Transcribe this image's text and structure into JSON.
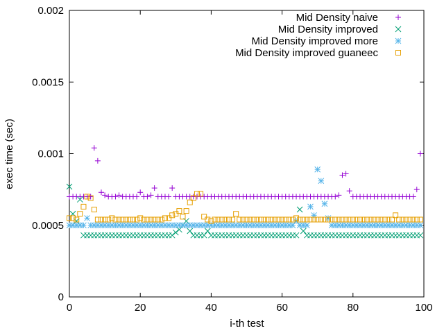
{
  "chart_data": {
    "type": "scatter",
    "title": "",
    "xlabel": "i-th test",
    "ylabel": "exec time (sec)",
    "xlim": [
      0,
      100
    ],
    "ylim": [
      0,
      0.002
    ],
    "x_ticks": [
      0,
      20,
      40,
      60,
      80,
      100
    ],
    "y_ticks": [
      0,
      0.0005,
      0.001,
      0.0015,
      0.002
    ],
    "x_tick_labels": [
      "0",
      "20",
      "40",
      "60",
      "80",
      "100"
    ],
    "y_tick_labels": [
      "0",
      "0.0005",
      "0.001",
      "0.0015",
      "0.002"
    ],
    "grid": false,
    "legend_position": "top-right",
    "series": [
      {
        "name": "Mid Density naive",
        "marker": "plus",
        "color": "#9400d3",
        "x": [
          0,
          1,
          2,
          3,
          4,
          5,
          6,
          7,
          8,
          9,
          10,
          11,
          12,
          13,
          14,
          15,
          16,
          17,
          18,
          19,
          20,
          21,
          22,
          23,
          24,
          25,
          26,
          27,
          28,
          29,
          30,
          31,
          32,
          33,
          34,
          35,
          36,
          37,
          38,
          39,
          40,
          41,
          42,
          43,
          44,
          45,
          46,
          47,
          48,
          49,
          50,
          51,
          52,
          53,
          54,
          55,
          56,
          57,
          58,
          59,
          60,
          61,
          62,
          63,
          64,
          65,
          66,
          67,
          68,
          69,
          70,
          71,
          72,
          73,
          74,
          75,
          76,
          77,
          78,
          79,
          80,
          81,
          82,
          83,
          84,
          85,
          86,
          87,
          88,
          89,
          90,
          91,
          92,
          93,
          94,
          95,
          96,
          97,
          98,
          99
        ],
        "y": [
          0.0007,
          0.0007,
          0.0007,
          0.0007,
          0.0007,
          0.0007,
          0.0007,
          0.00104,
          0.00095,
          0.00073,
          0.00071,
          0.0007,
          0.0007,
          0.0007,
          0.00071,
          0.0007,
          0.0007,
          0.0007,
          0.0007,
          0.0007,
          0.00073,
          0.0007,
          0.0007,
          0.00071,
          0.00076,
          0.0007,
          0.0007,
          0.0007,
          0.0007,
          0.00076,
          0.0007,
          0.0007,
          0.0007,
          0.0007,
          0.0007,
          0.0007,
          0.0007,
          0.0007,
          0.0007,
          0.0007,
          0.0007,
          0.0007,
          0.0007,
          0.0007,
          0.0007,
          0.0007,
          0.0007,
          0.0007,
          0.0007,
          0.0007,
          0.0007,
          0.0007,
          0.0007,
          0.0007,
          0.0007,
          0.0007,
          0.0007,
          0.0007,
          0.0007,
          0.0007,
          0.0007,
          0.0007,
          0.0007,
          0.0007,
          0.0007,
          0.0007,
          0.0007,
          0.0007,
          0.0007,
          0.0007,
          0.0007,
          0.0007,
          0.0007,
          0.0007,
          0.0007,
          0.0007,
          0.00071,
          0.00085,
          0.00086,
          0.00074,
          0.0007,
          0.0007,
          0.0007,
          0.0007,
          0.0007,
          0.0007,
          0.0007,
          0.0007,
          0.0007,
          0.0007,
          0.0007,
          0.0007,
          0.0007,
          0.0007,
          0.0007,
          0.0007,
          0.0007,
          0.0007,
          0.00075,
          0.001
        ]
      },
      {
        "name": "Mid Density improved",
        "marker": "cross",
        "color": "#009e73",
        "x": [
          0,
          1,
          2,
          3,
          4,
          5,
          6,
          7,
          8,
          9,
          10,
          11,
          12,
          13,
          14,
          15,
          16,
          17,
          18,
          19,
          20,
          21,
          22,
          23,
          24,
          25,
          26,
          27,
          28,
          29,
          30,
          31,
          32,
          33,
          34,
          35,
          36,
          37,
          38,
          39,
          40,
          41,
          42,
          43,
          44,
          45,
          46,
          47,
          48,
          49,
          50,
          51,
          52,
          53,
          54,
          55,
          56,
          57,
          58,
          59,
          60,
          61,
          62,
          63,
          64,
          65,
          66,
          67,
          68,
          69,
          70,
          71,
          72,
          73,
          74,
          75,
          76,
          77,
          78,
          79,
          80,
          81,
          82,
          83,
          84,
          85,
          86,
          87,
          88,
          89,
          90,
          91,
          92,
          93,
          94,
          95,
          96,
          97,
          98,
          99
        ],
        "y": [
          0.00077,
          0.00058,
          0.00053,
          0.00068,
          0.00043,
          0.00043,
          0.00043,
          0.00043,
          0.00043,
          0.00043,
          0.00043,
          0.00043,
          0.00043,
          0.00043,
          0.00043,
          0.00043,
          0.00043,
          0.00043,
          0.00043,
          0.00043,
          0.00043,
          0.00043,
          0.00043,
          0.00043,
          0.00043,
          0.00043,
          0.00043,
          0.00043,
          0.00043,
          0.00043,
          0.00045,
          0.00047,
          0.0005,
          0.00053,
          0.00046,
          0.00043,
          0.00043,
          0.00043,
          0.00043,
          0.00046,
          0.00043,
          0.00043,
          0.00043,
          0.00043,
          0.00043,
          0.00043,
          0.00043,
          0.00043,
          0.00043,
          0.00043,
          0.00043,
          0.00043,
          0.00043,
          0.00043,
          0.00043,
          0.00043,
          0.00043,
          0.00043,
          0.00043,
          0.00043,
          0.00043,
          0.00043,
          0.00043,
          0.00043,
          0.00043,
          0.00061,
          0.00046,
          0.00043,
          0.00043,
          0.00043,
          0.00043,
          0.00043,
          0.00043,
          0.00043,
          0.00043,
          0.00043,
          0.00043,
          0.00043,
          0.00043,
          0.00043,
          0.00043,
          0.00043,
          0.00043,
          0.00043,
          0.00043,
          0.00043,
          0.00043,
          0.00043,
          0.00043,
          0.00043,
          0.00043,
          0.00043,
          0.00043,
          0.00043,
          0.00043,
          0.00043,
          0.00043,
          0.00043,
          0.00043,
          0.00043
        ]
      },
      {
        "name": "Mid Density improved more",
        "marker": "star",
        "color": "#56b4e9",
        "x": [
          0,
          1,
          2,
          3,
          4,
          5,
          6,
          7,
          8,
          9,
          10,
          11,
          12,
          13,
          14,
          15,
          16,
          17,
          18,
          19,
          20,
          21,
          22,
          23,
          24,
          25,
          26,
          27,
          28,
          29,
          30,
          31,
          32,
          33,
          34,
          35,
          36,
          37,
          38,
          39,
          40,
          41,
          42,
          43,
          44,
          45,
          46,
          47,
          48,
          49,
          50,
          51,
          52,
          53,
          54,
          55,
          56,
          57,
          58,
          59,
          60,
          61,
          62,
          63,
          64,
          65,
          66,
          67,
          68,
          69,
          70,
          71,
          72,
          73,
          74,
          75,
          76,
          77,
          78,
          79,
          80,
          81,
          82,
          83,
          84,
          85,
          86,
          87,
          88,
          89,
          90,
          91,
          92,
          93,
          94,
          95,
          96,
          97,
          98,
          99
        ],
        "y": [
          0.0005,
          0.0005,
          0.0005,
          0.0005,
          0.0005,
          0.00055,
          0.0005,
          0.0005,
          0.0005,
          0.0005,
          0.0005,
          0.0005,
          0.0005,
          0.0005,
          0.0005,
          0.0005,
          0.0005,
          0.0005,
          0.0005,
          0.0005,
          0.0005,
          0.0005,
          0.0005,
          0.0005,
          0.0005,
          0.0005,
          0.0005,
          0.0005,
          0.0005,
          0.0005,
          0.0005,
          0.0005,
          0.0005,
          0.0005,
          0.0005,
          0.0005,
          0.0005,
          0.0005,
          0.0005,
          0.0005,
          0.0005,
          0.0005,
          0.0005,
          0.0005,
          0.0005,
          0.0005,
          0.0005,
          0.0005,
          0.0005,
          0.0005,
          0.0005,
          0.0005,
          0.0005,
          0.0005,
          0.0005,
          0.0005,
          0.0005,
          0.0005,
          0.0005,
          0.0005,
          0.0005,
          0.0005,
          0.0005,
          0.0005,
          0.00053,
          0.0005,
          0.0005,
          0.0005,
          0.00063,
          0.00057,
          0.00089,
          0.00081,
          0.00065,
          0.00055,
          0.0005,
          0.0005,
          0.0005,
          0.0005,
          0.0005,
          0.0005,
          0.0005,
          0.0005,
          0.0005,
          0.0005,
          0.0005,
          0.0005,
          0.0005,
          0.0005,
          0.0005,
          0.0005,
          0.0005,
          0.0005,
          0.0005,
          0.0005,
          0.0005,
          0.0005,
          0.0005,
          0.0005,
          0.0005,
          0.0005
        ]
      },
      {
        "name": "Mid Density improved guaneec",
        "marker": "square",
        "color": "#e69f00",
        "x": [
          0,
          1,
          2,
          3,
          4,
          5,
          6,
          7,
          8,
          9,
          10,
          11,
          12,
          13,
          14,
          15,
          16,
          17,
          18,
          19,
          20,
          21,
          22,
          23,
          24,
          25,
          26,
          27,
          28,
          29,
          30,
          31,
          32,
          33,
          34,
          35,
          36,
          37,
          38,
          39,
          40,
          41,
          42,
          43,
          44,
          45,
          46,
          47,
          48,
          49,
          50,
          51,
          52,
          53,
          54,
          55,
          56,
          57,
          58,
          59,
          60,
          61,
          62,
          63,
          64,
          65,
          66,
          67,
          68,
          69,
          70,
          71,
          72,
          73,
          74,
          75,
          76,
          77,
          78,
          79,
          80,
          81,
          82,
          83,
          84,
          85,
          86,
          87,
          88,
          89,
          90,
          91,
          92,
          93,
          94,
          95,
          96,
          97,
          98,
          99
        ],
        "y": [
          0.00055,
          0.00055,
          0.00054,
          0.00058,
          0.00063,
          0.0007,
          0.00069,
          0.00061,
          0.00054,
          0.00054,
          0.00054,
          0.00054,
          0.00055,
          0.00054,
          0.00054,
          0.00054,
          0.00054,
          0.00054,
          0.00054,
          0.00054,
          0.00055,
          0.00054,
          0.00054,
          0.00054,
          0.00054,
          0.00054,
          0.00054,
          0.00055,
          0.00055,
          0.00057,
          0.00058,
          0.0006,
          0.00056,
          0.0006,
          0.00066,
          0.00069,
          0.00072,
          0.00072,
          0.00056,
          0.00054,
          0.00053,
          0.00054,
          0.00054,
          0.00054,
          0.00054,
          0.00054,
          0.00054,
          0.00058,
          0.00054,
          0.00054,
          0.00054,
          0.00054,
          0.00054,
          0.00054,
          0.00054,
          0.00054,
          0.00054,
          0.00054,
          0.00054,
          0.00054,
          0.00054,
          0.00054,
          0.00054,
          0.00054,
          0.00055,
          0.00054,
          0.00054,
          0.00054,
          0.00054,
          0.00054,
          0.00054,
          0.00054,
          0.00054,
          0.00054,
          0.00054,
          0.00054,
          0.00054,
          0.00054,
          0.00054,
          0.00054,
          0.00054,
          0.00054,
          0.00054,
          0.00054,
          0.00054,
          0.00054,
          0.00054,
          0.00054,
          0.00054,
          0.00054,
          0.00054,
          0.00054,
          0.00057,
          0.00054,
          0.00054,
          0.00054,
          0.00054,
          0.00054,
          0.00054,
          0.00054
        ]
      }
    ]
  }
}
